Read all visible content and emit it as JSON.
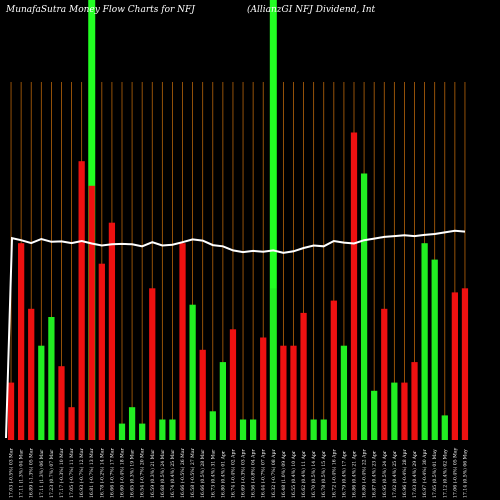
{
  "chart_data": {
    "type": "bar",
    "title_left": "MunafaSutra  Money Flow  Charts for NFJ",
    "title_right": "(AllianzGI NFJ Dividend,  Int",
    "ylim": [
      0,
      100
    ],
    "grid": true,
    "colors": {
      "background": "#000000",
      "grid": "#b8650a",
      "up": "#22ee22",
      "down": "#ee1111",
      "line": "#ffffff",
      "highlight": "#22ff22"
    },
    "highlight_indices": [
      8,
      26
    ],
    "categories": [
      "17.03 (-0.5%) 03 Mar",
      "17.11 (1.3%) 04 Mar",
      "16.89 (-1.3%) 05 Mar",
      "17.11 (1.3%) 06 Mar",
      "17.23 (0.7%) 07 Mar",
      "17.17 (-0.3%) 10 Mar",
      "17.05 (-0.7%) 11 Mar",
      "16.93 (-0.7%) 12 Mar",
      "16.81 (-0.7%) 13 Mar",
      "16.78 (-0.2%) 14 Mar",
      "16.66 (-0.7%) 17 Mar",
      "16.60 (-0.4%) 18 Mar",
      "16.65 (0.3%) 19 Mar",
      "16.54 (-0.7%) 20 Mar",
      "16.59 (0.3%) 21 Mar",
      "16.68 (0.5%) 24 Mar",
      "16.74 (0.4%) 25 Mar",
      "16.66 (-0.5%) 26 Mar",
      "16.58 (-0.5%) 27 Mar",
      "16.66 (0.5%) 28 Mar",
      "16.73 (0.4%) 31 Mar",
      "16.80 (0.4%) 01 Apr",
      "16.74 (-0.4%) 02 Apr",
      "16.69 (-0.3%) 03 Apr",
      "16.56 (-0.8%) 04 Apr",
      "16.44 (-0.7%) 07 Apr",
      "16.32 (-0.7%) 08 Apr",
      "16.48 (1.0%) 09 Apr",
      "16.55 (0.4%) 10 Apr",
      "16.62 (0.4%) 11 Apr",
      "16.70 (0.5%) 14 Apr",
      "16.78 (0.5%) 15 Apr",
      "16.72 (-0.4%) 16 Apr",
      "16.79 (0.4%) 17 Apr",
      "16.86 (0.4%) 21 Apr",
      "16.80 (-0.4%) 22 Apr",
      "16.87 (0.4%) 23 Apr",
      "16.95 (0.5%) 24 Apr",
      "17.02 (0.4%) 25 Apr",
      "16.96 (-0.4%) 28 Apr",
      "17.03 (0.4%) 29 Apr",
      "16.97 (-0.4%) 30 Apr",
      "17.05 (0.5%) 01 May",
      "17.12 (0.4%) 02 May",
      "17.06 (-0.4%) 05 May",
      "17.14 (0.5%) 06 May"
    ],
    "bar_values": [
      14,
      48,
      32,
      23,
      30,
      18,
      8,
      68,
      62,
      43,
      53,
      4,
      8,
      4,
      37,
      5,
      5,
      48,
      33,
      22,
      7,
      19,
      27,
      5,
      5,
      25,
      37,
      23,
      23,
      31,
      5,
      5,
      34,
      23,
      75,
      65,
      12,
      32,
      14,
      14,
      19,
      48,
      44,
      6,
      36,
      37
    ],
    "bar_colors": [
      "red",
      "red",
      "red",
      "green",
      "green",
      "red",
      "red",
      "red",
      "red",
      "red",
      "red",
      "green",
      "green",
      "green",
      "red",
      "green",
      "green",
      "red",
      "green",
      "red",
      "green",
      "green",
      "red",
      "green",
      "green",
      "red",
      "green",
      "red",
      "red",
      "red",
      "green",
      "green",
      "red",
      "green",
      "red",
      "green",
      "green",
      "red",
      "green",
      "red",
      "red",
      "green",
      "green",
      "green",
      "red",
      "red"
    ],
    "line_values": [
      74.6,
      74.1,
      73.4,
      74.4,
      73.7,
      73.8,
      73.4,
      73.9,
      73.3,
      72.8,
      73.1,
      73.2,
      73.1,
      72.6,
      73.6,
      72.8,
      73.0,
      73.6,
      74.3,
      74.0,
      72.9,
      72.6,
      71.6,
      71.2,
      71.5,
      71.3,
      71.6,
      71.0,
      71.4,
      72.2,
      72.8,
      72.6,
      73.9,
      73.5,
      73.3,
      74.1,
      74.5,
      74.9,
      75.1,
      75.3,
      75.1,
      75.4,
      75.6,
      76.0,
      76.4,
      76.2
    ]
  }
}
